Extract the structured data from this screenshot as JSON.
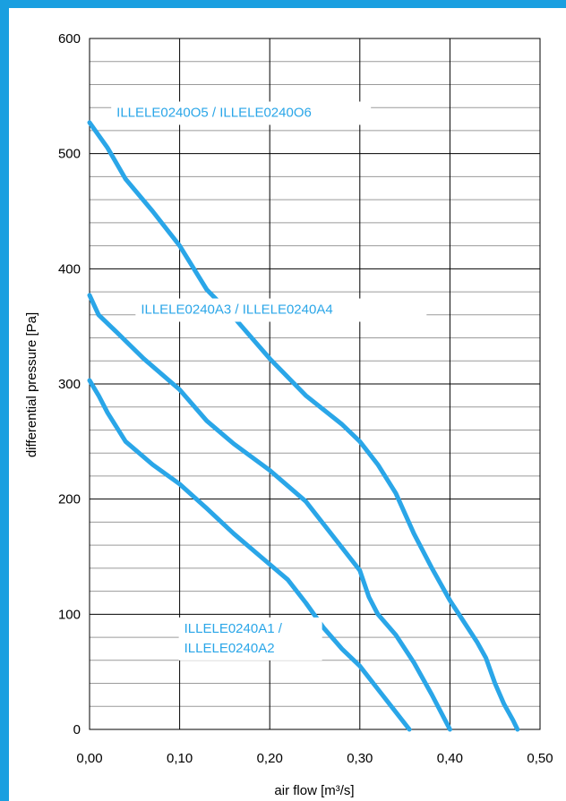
{
  "chart_data": {
    "type": "line",
    "title": "",
    "xlabel": "air flow  [m³/s]",
    "ylabel": "differential pressure [Pa]",
    "xlim": [
      0,
      0.5
    ],
    "ylim": [
      0,
      600
    ],
    "x_ticks": [
      "0,00",
      "0,10",
      "0,20",
      "0,30",
      "0,40",
      "0,50"
    ],
    "y_ticks": [
      "0",
      "100",
      "200",
      "300",
      "400",
      "500",
      "600"
    ],
    "grid": true,
    "legend": "none",
    "frame_color": "#1a9fe0",
    "line_color": "#2aa6e8",
    "series": [
      {
        "name": "ILLELE0240O5 / ILLELE0240O6",
        "label_lines": [
          "ILLELE0240O5 / ILLELE0240O6"
        ],
        "x": [
          0.0,
          0.02,
          0.04,
          0.07,
          0.1,
          0.13,
          0.16,
          0.2,
          0.24,
          0.28,
          0.3,
          0.32,
          0.34,
          0.36,
          0.38,
          0.4,
          0.42,
          0.43,
          0.44,
          0.45,
          0.46,
          0.47,
          0.475
        ],
        "y": [
          527,
          505,
          478,
          450,
          420,
          382,
          358,
          322,
          290,
          265,
          250,
          230,
          205,
          170,
          140,
          112,
          88,
          76,
          62,
          40,
          22,
          8,
          0
        ]
      },
      {
        "name": "ILLELE0240A3 / ILLELE0240A4",
        "label_lines": [
          "ILLELE0240A3 / ILLELE0240A4"
        ],
        "x": [
          0.0,
          0.01,
          0.03,
          0.06,
          0.1,
          0.13,
          0.16,
          0.2,
          0.24,
          0.26,
          0.28,
          0.3,
          0.31,
          0.32,
          0.34,
          0.36,
          0.38,
          0.4
        ],
        "y": [
          377,
          360,
          345,
          322,
          295,
          268,
          248,
          225,
          198,
          178,
          158,
          138,
          115,
          100,
          82,
          58,
          30,
          0
        ]
      },
      {
        "name": "ILLELE0240A1 / ILLELE0240A2",
        "label_lines": [
          "ILLELE0240A1 /",
          "ILLELE0240A2"
        ],
        "x": [
          0.0,
          0.01,
          0.02,
          0.04,
          0.07,
          0.1,
          0.13,
          0.16,
          0.19,
          0.22,
          0.24,
          0.26,
          0.28,
          0.3,
          0.32,
          0.34,
          0.355
        ],
        "y": [
          303,
          290,
          275,
          250,
          230,
          213,
          192,
          170,
          150,
          130,
          110,
          88,
          70,
          55,
          35,
          15,
          0
        ]
      }
    ]
  }
}
